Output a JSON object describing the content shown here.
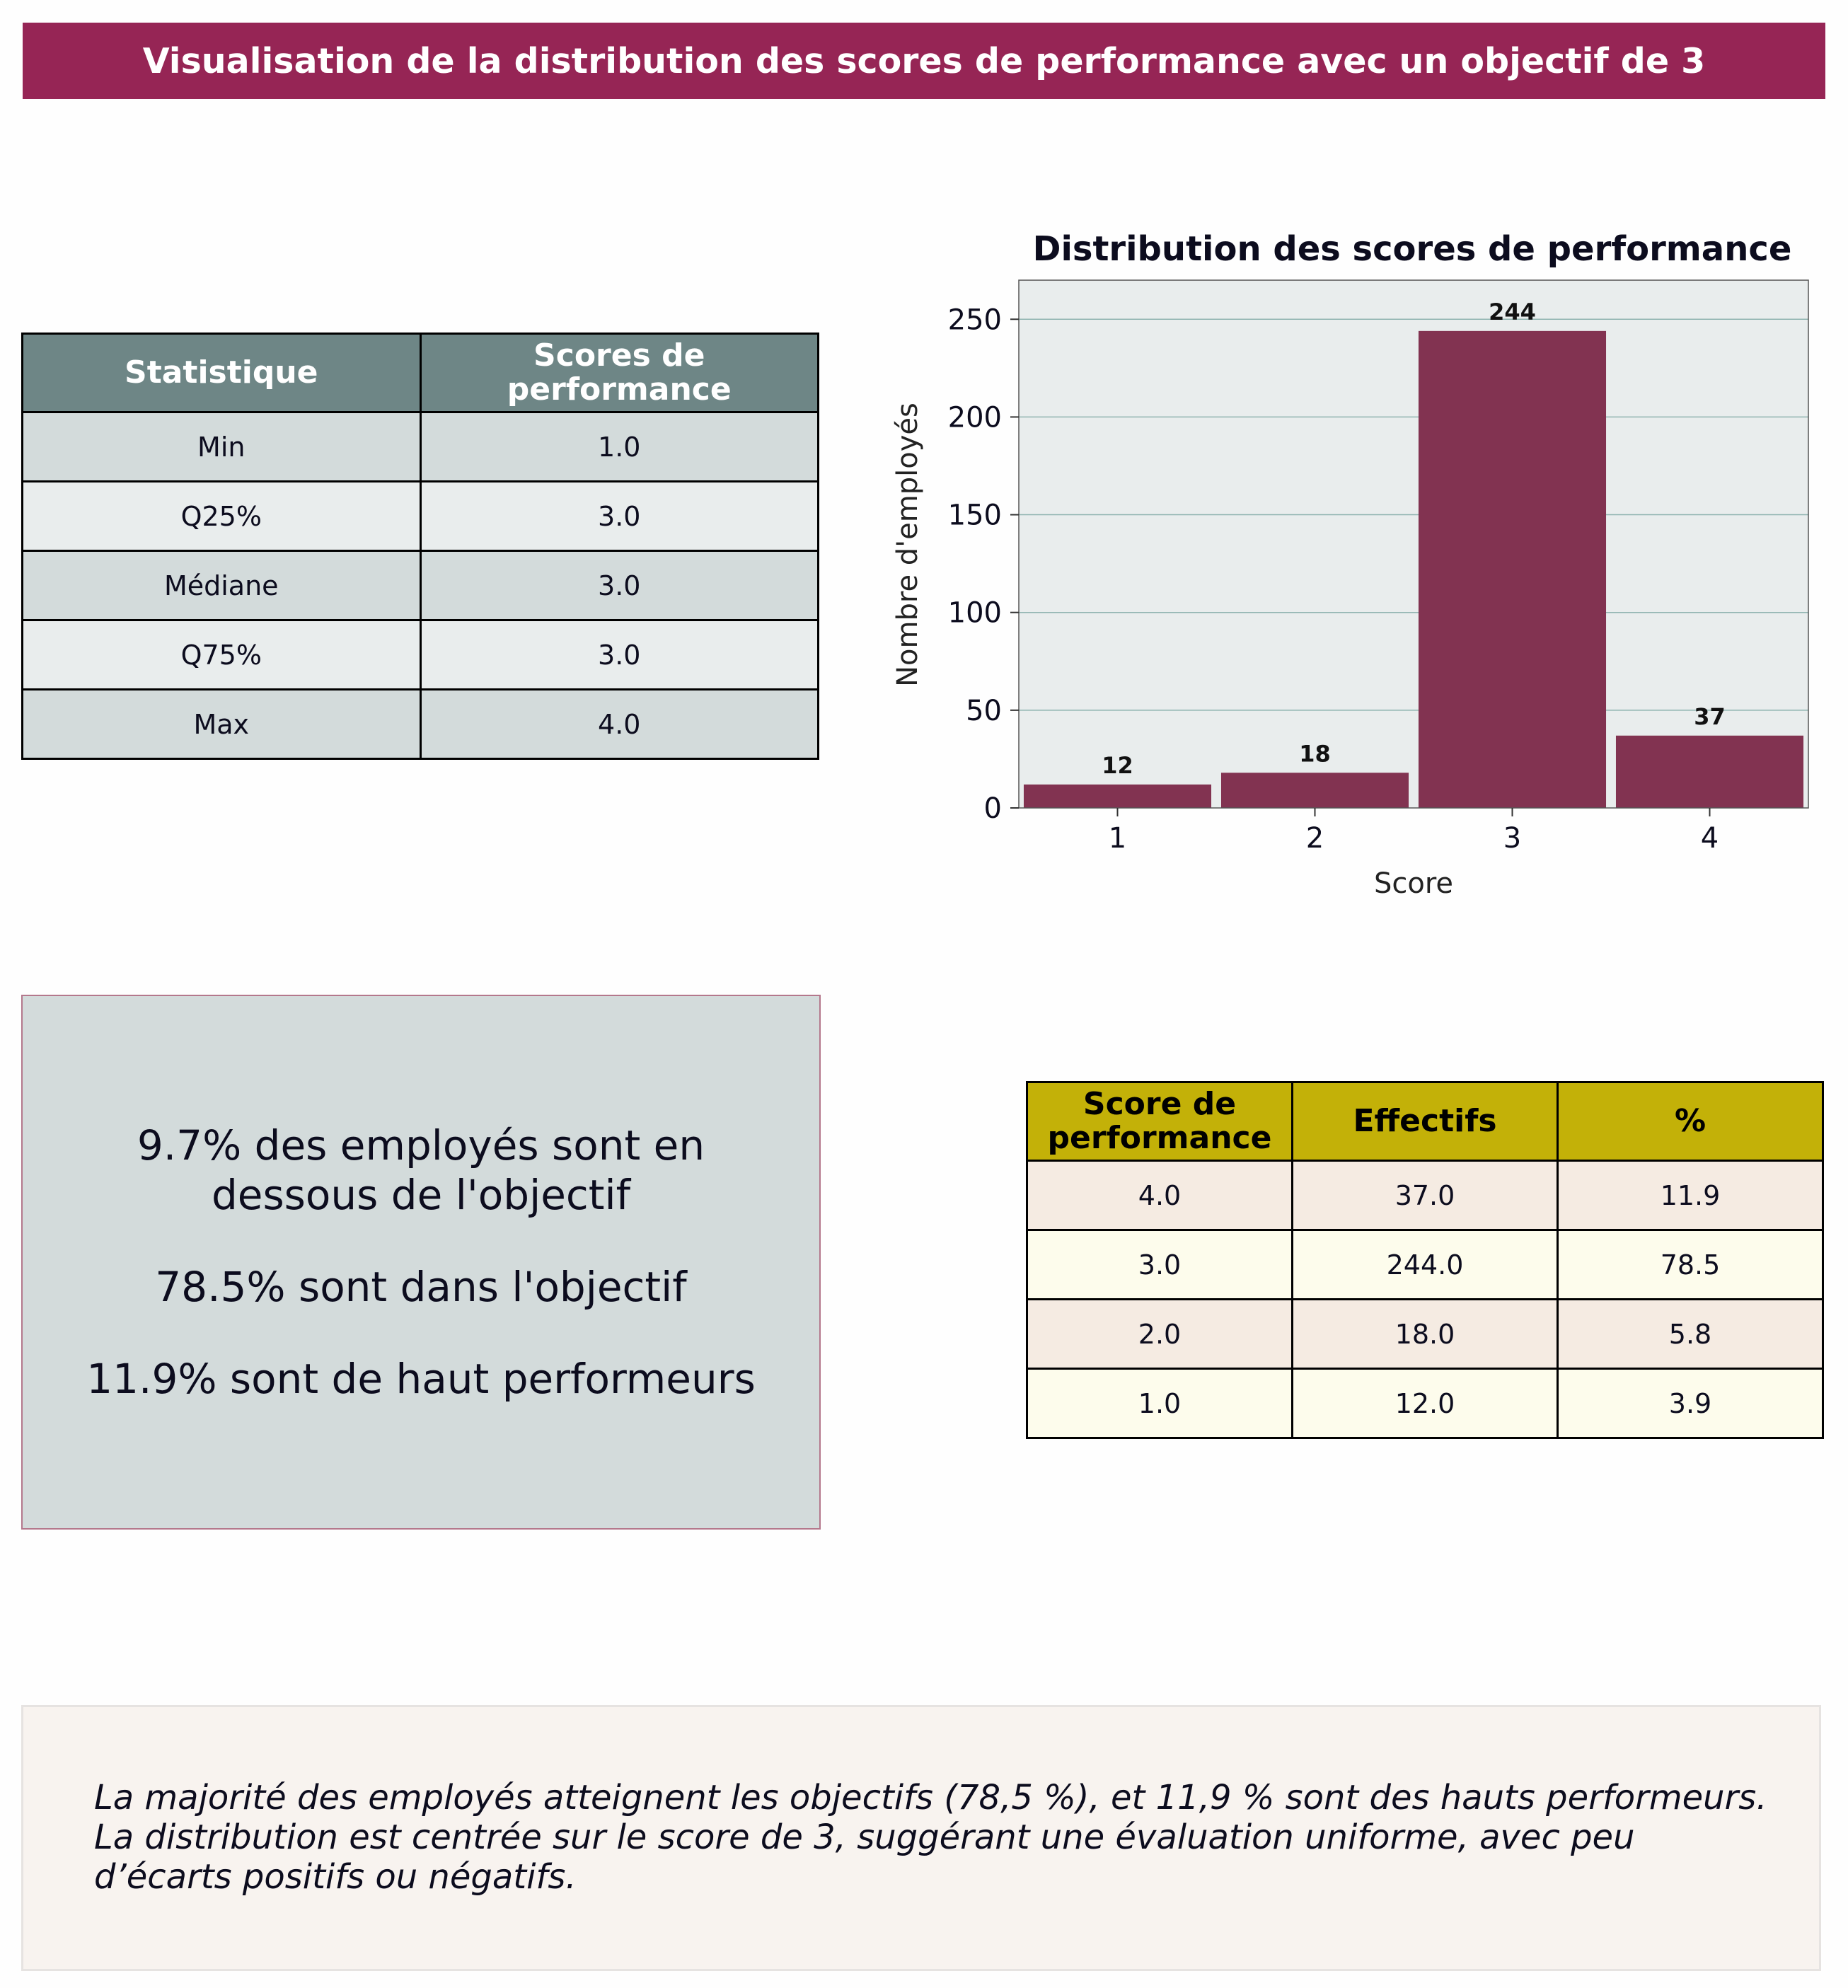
{
  "header": {
    "title": "Visualisation de la distribution des scores de performance avec un objectif de 3"
  },
  "stats_table": {
    "headers": [
      "Statistique",
      "Scores de performance"
    ],
    "rows": [
      [
        "Min",
        "1.0"
      ],
      [
        "Q25%",
        "3.0"
      ],
      [
        "Médiane",
        "3.0"
      ],
      [
        "Q75%",
        "3.0"
      ],
      [
        "Max",
        "4.0"
      ]
    ]
  },
  "summary": {
    "line1": "9.7% des employés sont en dessous de l'objectif",
    "line2": "78.5% sont dans l'objectif",
    "line3": "11.9% sont de haut performeurs"
  },
  "freq_table": {
    "headers": [
      "Score de performance",
      "Effectifs",
      "%"
    ],
    "rows": [
      [
        "4.0",
        "37.0",
        "11.9"
      ],
      [
        "3.0",
        "244.0",
        "78.5"
      ],
      [
        "2.0",
        "18.0",
        "5.8"
      ],
      [
        "1.0",
        "12.0",
        "3.9"
      ]
    ]
  },
  "note": {
    "line1": "La majorité des employés atteignent les objectifs (78,5 %), et 11,9 % sont des hauts performeurs.",
    "line2": "La distribution est centrée sur le score de 3, suggérant une évaluation uniforme, avec peu",
    "line3": "d’écarts positifs ou négatifs."
  },
  "colors": {
    "banner": "#962555",
    "bar": "#823351",
    "plot_background": "#e9eded",
    "gridline": "#8fb4b0",
    "stats_header": "#6e8686",
    "freq_header": "#c3b108"
  },
  "chart_data": {
    "type": "bar",
    "title": "Distribution des scores de performance",
    "xlabel": "Score",
    "ylabel": "Nombre d'employés",
    "categories": [
      "1",
      "2",
      "3",
      "4"
    ],
    "values": [
      12,
      18,
      244,
      37
    ],
    "data_labels": [
      "12",
      "18",
      "244",
      "37"
    ],
    "yticks": [
      0,
      50,
      100,
      150,
      200,
      250
    ],
    "ylim": [
      0,
      270
    ],
    "grid": "horizontal",
    "legend": "none"
  }
}
